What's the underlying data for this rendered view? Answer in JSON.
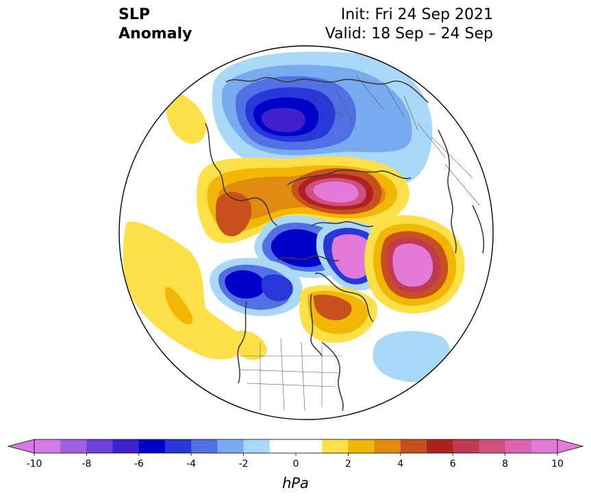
{
  "title": {
    "line1": "SLP",
    "line2": "Anomaly"
  },
  "init": "Init: Fri 24 Sep 2021",
  "valid": "Valid: 18 Sep – 24 Sep",
  "colorbar": {
    "units": "hPa",
    "ticks": [
      -10,
      -8,
      -6,
      -4,
      -2,
      0,
      2,
      4,
      6,
      8,
      10
    ],
    "tick_labels": [
      "-10",
      "-8",
      "-6",
      "-4",
      "-2",
      "0",
      "2",
      "4",
      "6",
      "8",
      "10"
    ],
    "levels": [
      -10,
      -9,
      -8,
      -7,
      -6,
      -5,
      -4,
      -3,
      -2,
      -1,
      1,
      2,
      3,
      4,
      5,
      6,
      7,
      8,
      9,
      10
    ],
    "extend": "both",
    "colors": [
      "#d57ae6",
      "#a060e0",
      "#7040dc",
      "#4020cc",
      "#0000c8",
      "#2838d8",
      "#5070e4",
      "#78aaf0",
      "#aad8f8",
      "#ffffff",
      "#fde047",
      "#f2b705",
      "#e08a10",
      "#c8501c",
      "#b02020",
      "#c03a50",
      "#d05080",
      "#dc64b0",
      "#e47ad8"
    ],
    "under_color": "#d57ae6",
    "over_color": "#e47ad8"
  },
  "map": {
    "projection": "north-polar-stereographic",
    "anomalies": [
      {
        "region": "Kara Sea / northern Siberia",
        "value": -6.5
      },
      {
        "region": "Arctic Ocean near Svalbard",
        "value": 7.5
      },
      {
        "region": "Beaufort Sea",
        "value": -5
      },
      {
        "region": "Baffin Bay / Labrador Sea",
        "value": 9
      },
      {
        "region": "North Atlantic",
        "value": 9.5
      },
      {
        "region": "Gulf of Alaska / Bering",
        "value": -6
      },
      {
        "region": "Hudson Bay",
        "value": 4
      },
      {
        "region": "North Pacific",
        "value": 2.5
      },
      {
        "region": "Subtropical Atlantic",
        "value": -1.5
      }
    ]
  }
}
